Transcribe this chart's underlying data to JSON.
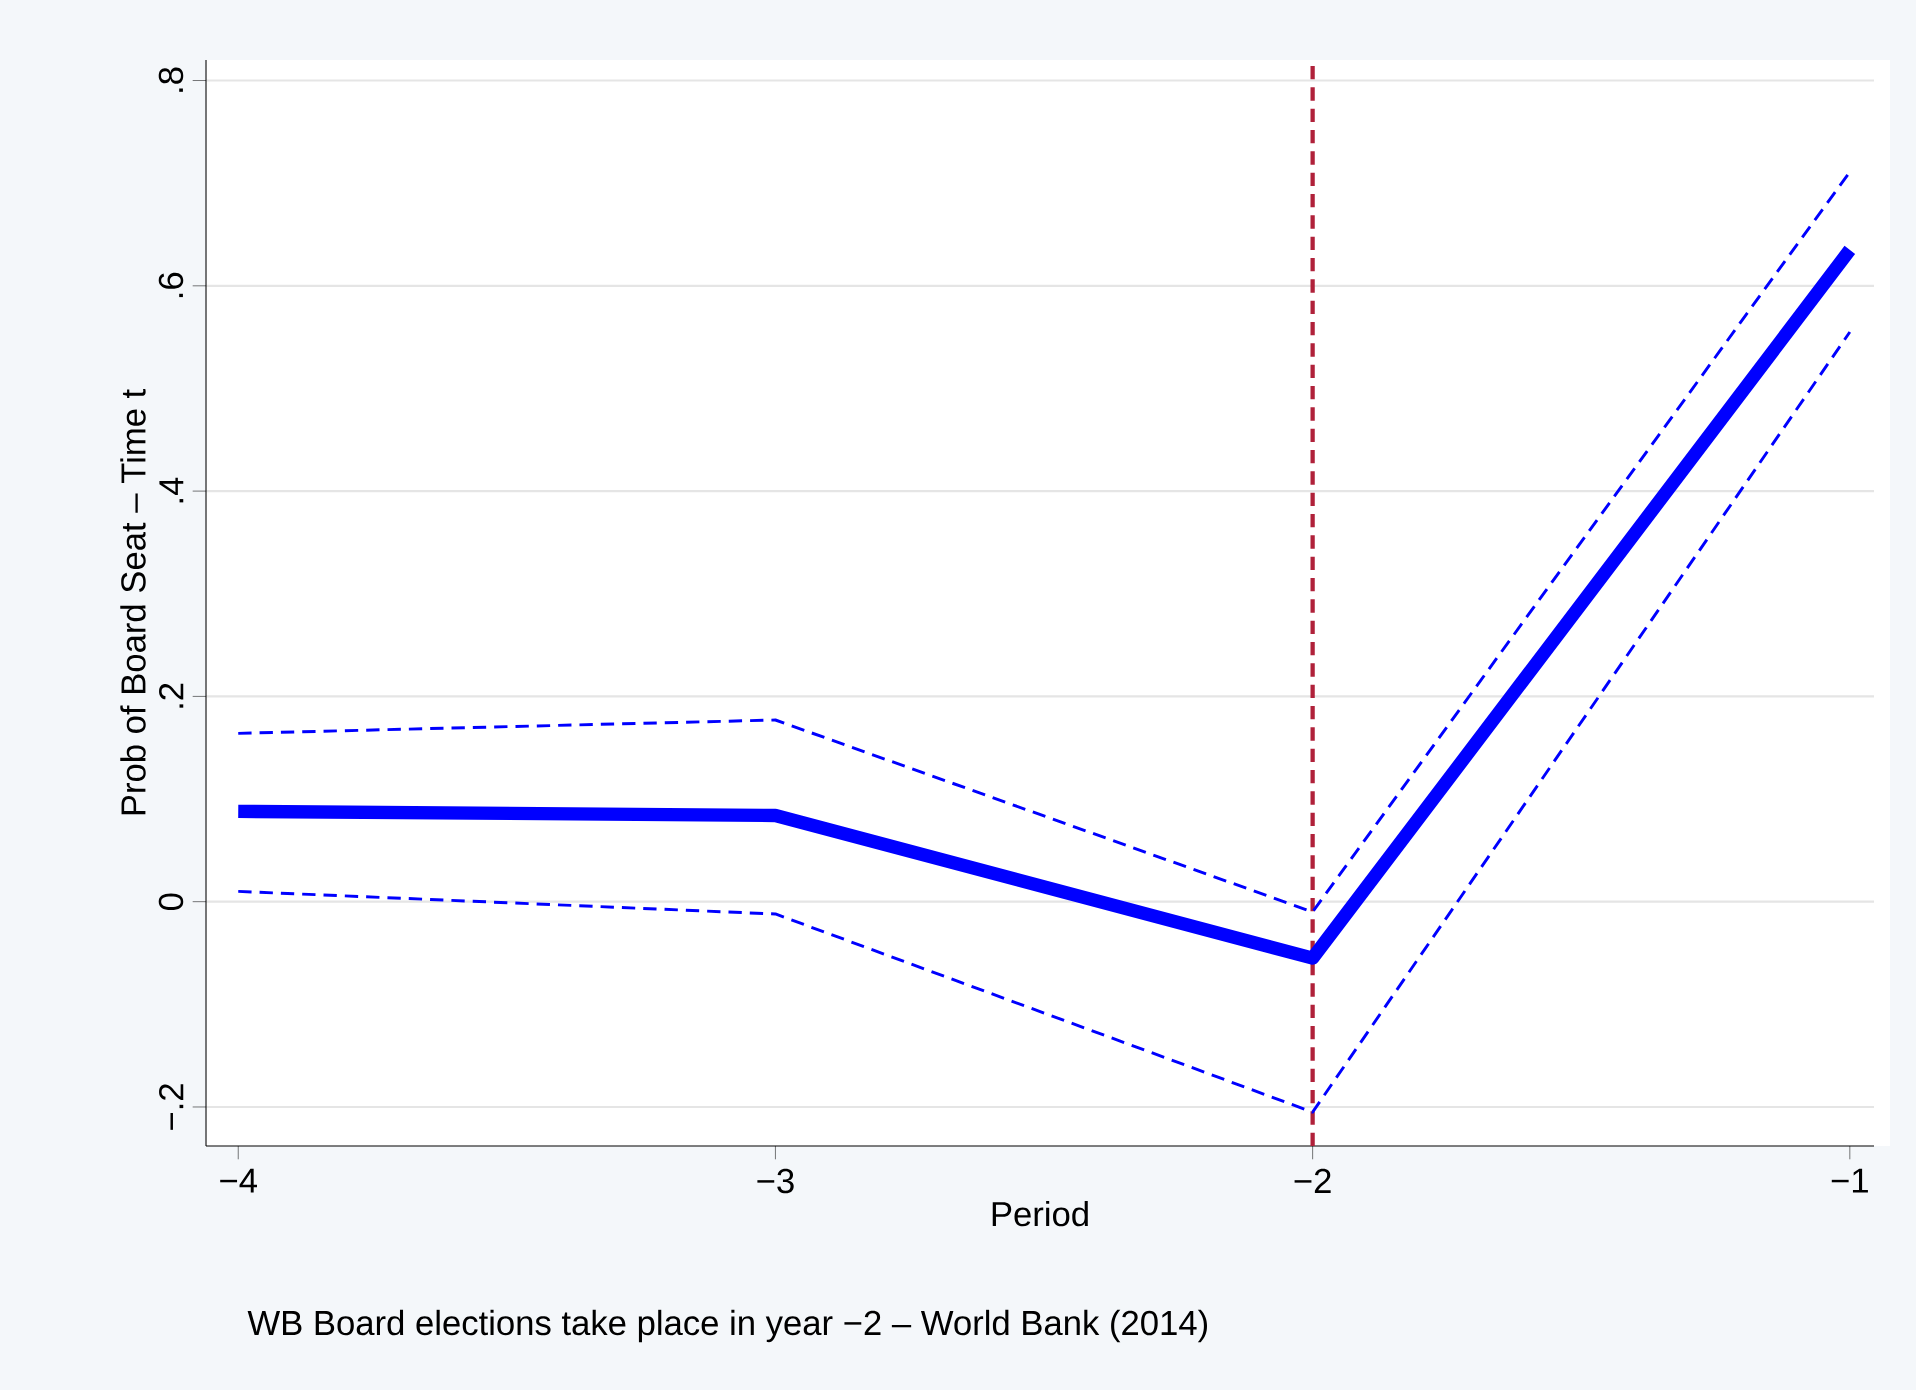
{
  "chart_data": {
    "type": "line",
    "xlabel": "Period",
    "ylabel": "Prob of Board Seat – Time t",
    "x": [
      -4,
      -3,
      -2,
      -1
    ],
    "series": [
      {
        "color": "#0000ff",
        "values": [
          0.088,
          0.084,
          -0.055,
          0.635
        ],
        "line_style": "solid"
      },
      {
        "color": "#0000ff",
        "values": [
          0.164,
          0.177,
          -0.01,
          0.711
        ],
        "line_style": "dashed"
      },
      {
        "color": "#0000ff",
        "values": [
          0.01,
          -0.012,
          -0.205,
          0.555
        ],
        "line_style": "dashed"
      }
    ],
    "xlim": [
      -4.06,
      -0.955
    ],
    "ylim": [
      -0.238,
      0.82
    ],
    "xticks": [
      {
        "value": -4,
        "label": "−4"
      },
      {
        "value": -3,
        "label": "−3"
      },
      {
        "value": -2,
        "label": "−2"
      },
      {
        "value": -1,
        "label": "−1"
      }
    ],
    "yticks": [
      {
        "value": -0.2,
        "label": "−.2"
      },
      {
        "value": 0,
        "label": "0"
      },
      {
        "value": 0.2,
        "label": ".2"
      },
      {
        "value": 0.4,
        "label": ".4"
      },
      {
        "value": 0.6,
        "label": ".6"
      },
      {
        "value": 0.8,
        "label": ".8"
      }
    ],
    "grid": "y",
    "marker": "none",
    "ref_lines": [
      {
        "axis": "x",
        "value": -2,
        "color": "#b0213a",
        "line_style": "dashed"
      }
    ],
    "annotations": [
      "WB Board elections take place in year −2 – World Bank (2014)"
    ]
  }
}
